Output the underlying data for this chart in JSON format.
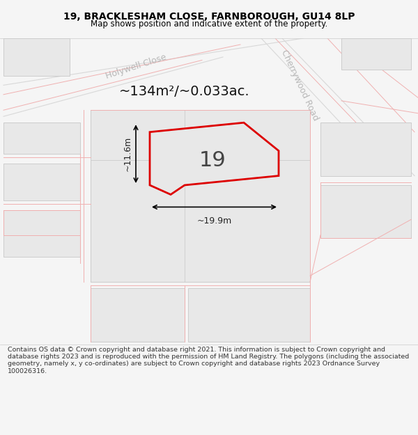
{
  "title_line1": "19, BRACKLESHAM CLOSE, FARNBOROUGH, GU14 8LP",
  "title_line2": "Map shows position and indicative extent of the property.",
  "area_text": "~134m²/~0.033ac.",
  "label_19": "19",
  "dim_width": "~19.9m",
  "dim_height": "~11.6m",
  "footer_text": "Contains OS data © Crown copyright and database right 2021. This information is subject to Crown copyright and database rights 2023 and is reproduced with the permission of HM Land Registry. The polygons (including the associated geometry, namely x, y co-ordinates) are subject to Crown copyright and database rights 2023 Ordnance Survey 100026316.",
  "bg_color": "#f5f5f5",
  "map_bg": "#ffffff",
  "road_line_color": "#f0b0b0",
  "building_fill": "#e8e8e8",
  "building_edge": "#cccccc",
  "highlight_fill": "#e8e8e8",
  "highlight_edge": "#dd0000",
  "street_label_color": "#b8b8b8",
  "title_color": "#000000",
  "dim_color": "#222222",
  "footer_color": "#333333",
  "title_fontsize": 10,
  "subtitle_fontsize": 8.5,
  "area_fontsize": 14,
  "label_fontsize": 22,
  "dim_fontsize": 9,
  "street_fontsize": 9
}
